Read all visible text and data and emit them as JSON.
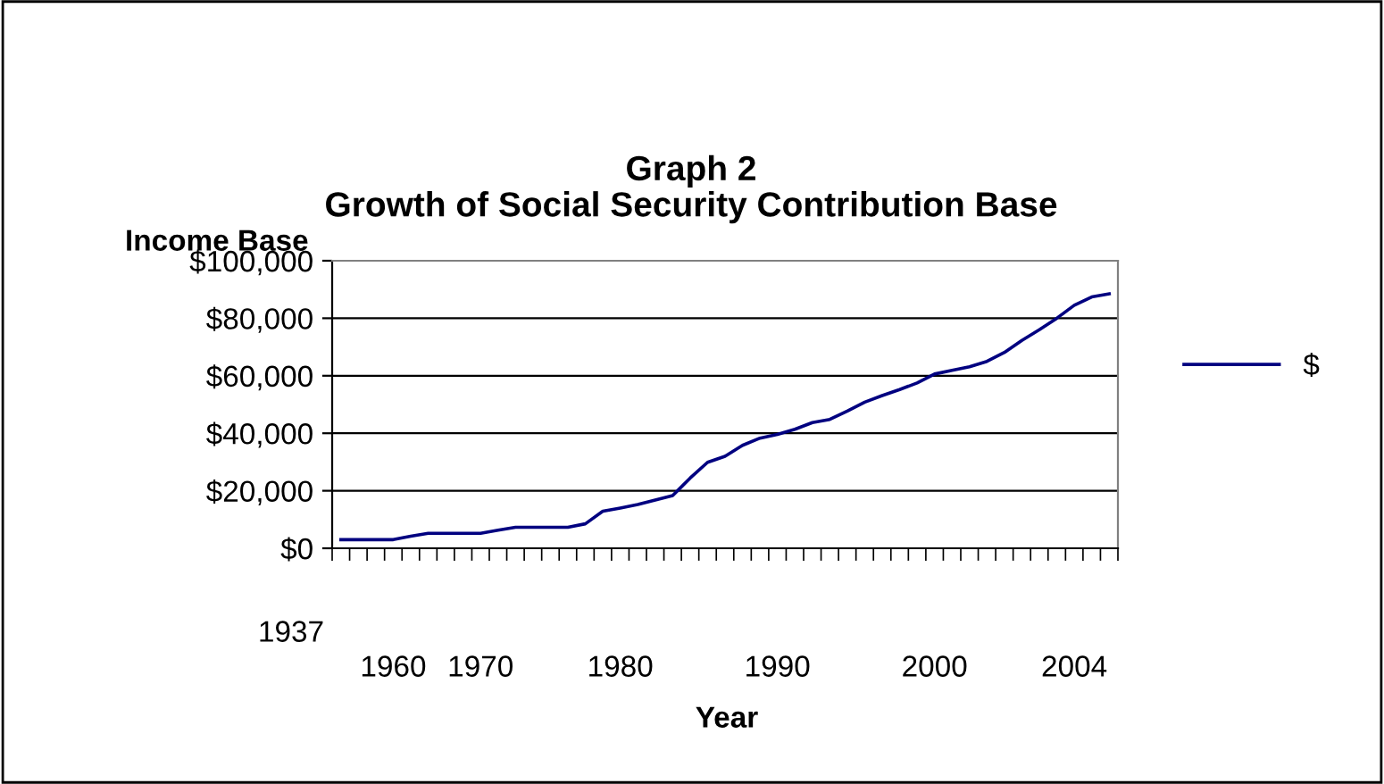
{
  "chart_data": {
    "type": "line",
    "title": "Graph 2\nGrowth of Social Security Contribution Base",
    "ylabel": "Income Base",
    "xlabel": "Year",
    "categories": [
      null,
      null,
      null,
      "1960",
      null,
      null,
      null,
      null,
      "1970",
      null,
      null,
      null,
      null,
      null,
      null,
      null,
      "1980",
      null,
      null,
      null,
      null,
      null,
      null,
      null,
      null,
      "1990",
      null,
      null,
      null,
      null,
      null,
      null,
      null,
      null,
      "2000",
      null,
      null,
      null,
      null,
      null,
      null,
      null,
      "2004",
      null,
      null
    ],
    "annotations": [
      "1937"
    ],
    "series": [
      {
        "name": "$",
        "color": "#000080",
        "values": [
          3000,
          3000,
          3000,
          3000,
          4200,
          5200,
          5200,
          5200,
          5200,
          6300,
          7300,
          7300,
          7300,
          7300,
          8500,
          12900,
          14000,
          15200,
          16800,
          18300,
          24400,
          29900,
          32000,
          35800,
          38300,
          39600,
          41400,
          43700,
          44800,
          47700,
          50800,
          53100,
          55200,
          57500,
          60600,
          61900,
          63100,
          65000,
          68100,
          72300,
          76000,
          80000,
          84500,
          87400,
          88500
        ]
      }
    ],
    "ylim": [
      0,
      100000
    ],
    "yticks": [
      {
        "value": 0,
        "label": "$0"
      },
      {
        "value": 20000,
        "label": "$20,000"
      },
      {
        "value": 40000,
        "label": "$40,000"
      },
      {
        "value": 60000,
        "label": "$60,000"
      },
      {
        "value": 80000,
        "label": "$80,000"
      },
      {
        "value": 100000,
        "label": "$100,000"
      }
    ],
    "grid": "y",
    "legend": "right",
    "marker": "none",
    "line_style": "solid"
  }
}
